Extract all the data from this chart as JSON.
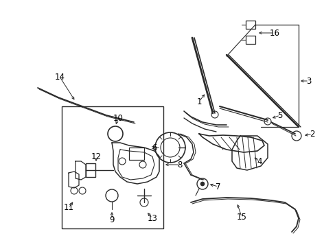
{
  "bg_color": "#ffffff",
  "line_color": "#2a2a2a",
  "fig_width": 4.89,
  "fig_height": 3.6,
  "dpi": 100,
  "label_fontsize": 8.5
}
